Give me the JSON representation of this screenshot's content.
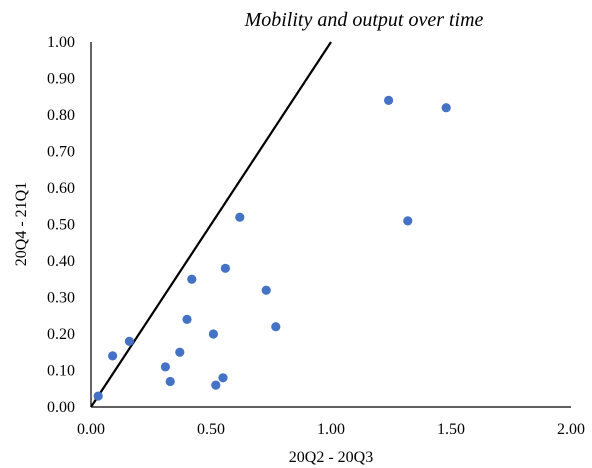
{
  "chart_data": {
    "type": "scatter",
    "title": "Mobility and output over time",
    "xlabel": "20Q2 - 20Q3",
    "ylabel": "20Q4 - 21Q1",
    "xlim": [
      0.0,
      2.0
    ],
    "ylim": [
      0.0,
      1.0
    ],
    "x_ticks": [
      "0.00",
      "0.50",
      "1.00",
      "1.50",
      "2.00"
    ],
    "y_ticks": [
      "0.00",
      "0.10",
      "0.20",
      "0.30",
      "0.40",
      "0.50",
      "0.60",
      "0.70",
      "0.80",
      "0.90",
      "1.00"
    ],
    "grid": false,
    "legend": "none",
    "marker_color": "#4472C4",
    "reference_line": {
      "from": [
        0.0,
        0.0
      ],
      "to": [
        1.0,
        1.0
      ],
      "color": "#000000"
    },
    "points": [
      {
        "x": 0.03,
        "y": 0.03
      },
      {
        "x": 0.09,
        "y": 0.14
      },
      {
        "x": 0.16,
        "y": 0.18
      },
      {
        "x": 0.31,
        "y": 0.11
      },
      {
        "x": 0.33,
        "y": 0.07
      },
      {
        "x": 0.37,
        "y": 0.15
      },
      {
        "x": 0.4,
        "y": 0.24
      },
      {
        "x": 0.42,
        "y": 0.35
      },
      {
        "x": 0.51,
        "y": 0.2
      },
      {
        "x": 0.52,
        "y": 0.06
      },
      {
        "x": 0.55,
        "y": 0.08
      },
      {
        "x": 0.56,
        "y": 0.38
      },
      {
        "x": 0.62,
        "y": 0.52
      },
      {
        "x": 0.73,
        "y": 0.32
      },
      {
        "x": 0.77,
        "y": 0.22
      },
      {
        "x": 1.24,
        "y": 0.84
      },
      {
        "x": 1.32,
        "y": 0.51
      },
      {
        "x": 1.48,
        "y": 0.82
      }
    ]
  }
}
